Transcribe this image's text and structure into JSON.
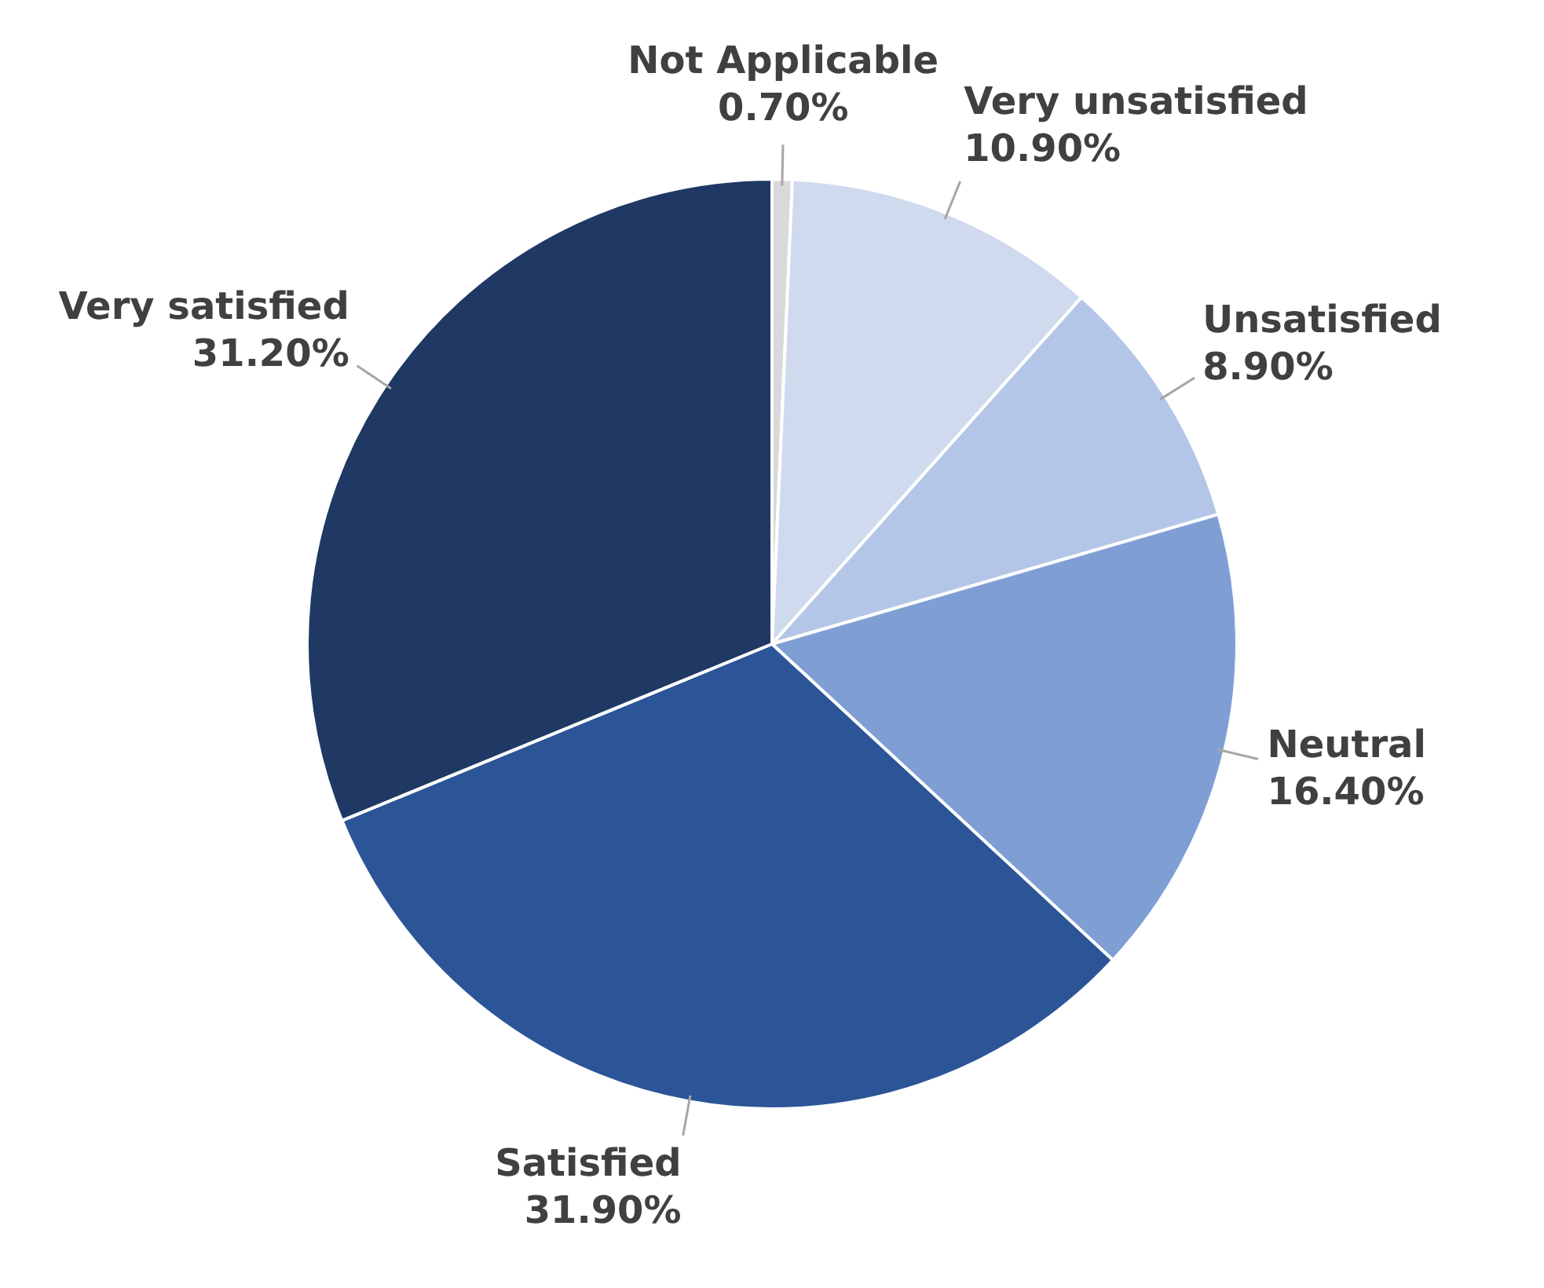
{
  "chart_data": {
    "type": "pie",
    "categories": [
      "Not Applicable",
      "Very unsatisfied",
      "Unsatisfied",
      "Neutral",
      "Satisfied",
      "Very satisfied"
    ],
    "values": [
      0.7,
      10.9,
      8.9,
      16.4,
      31.9,
      31.2
    ],
    "colors": [
      "#d9d9d9",
      "#cfdaee",
      "#b4c6e7",
      "#7f9fd4",
      "#2c5597",
      "#1f3864"
    ],
    "value_labels": [
      "0.70%",
      "10.90%",
      "8.90%",
      "16.40%",
      "31.90%",
      "31.20%"
    ],
    "legend": false
  }
}
